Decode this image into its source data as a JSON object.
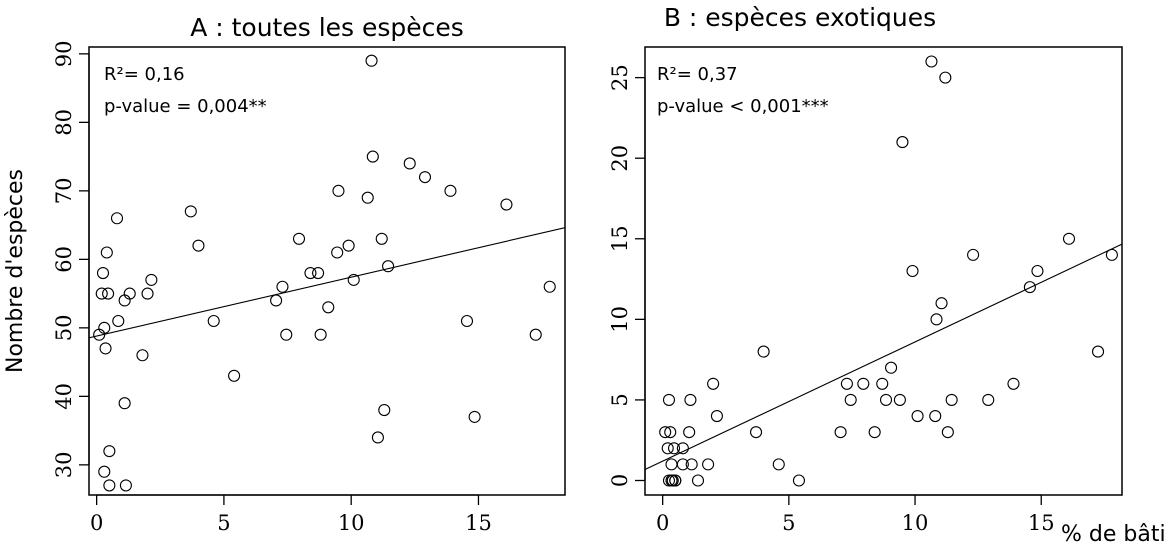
{
  "chart_data": [
    {
      "type": "scatter",
      "title": "A : toutes les espèces",
      "ylabel": "Nombre d'espèces",
      "xlabel": "",
      "xlim": [
        -0.3,
        18.4
      ],
      "ylim": [
        25.6,
        91
      ],
      "xticks": [
        0,
        5,
        10,
        15
      ],
      "yticks": [
        30,
        40,
        50,
        60,
        70,
        80,
        90
      ],
      "annotation_r2": "R²= 0,16",
      "annotation_p": "p-value = 0,004**",
      "regression": {
        "intercept": 48.8,
        "slope": 0.86
      },
      "points": [
        [
          0.1,
          49
        ],
        [
          0.2,
          55
        ],
        [
          0.25,
          58
        ],
        [
          0.3,
          29
        ],
        [
          0.3,
          50
        ],
        [
          0.35,
          47
        ],
        [
          0.4,
          61
        ],
        [
          0.45,
          55
        ],
        [
          0.5,
          32
        ],
        [
          0.5,
          27
        ],
        [
          0.8,
          66
        ],
        [
          0.85,
          51
        ],
        [
          1.1,
          54
        ],
        [
          1.1,
          39
        ],
        [
          1.15,
          27
        ],
        [
          1.3,
          55
        ],
        [
          1.8,
          46
        ],
        [
          2.0,
          55
        ],
        [
          2.15,
          57
        ],
        [
          3.7,
          67
        ],
        [
          4.0,
          62
        ],
        [
          4.6,
          51
        ],
        [
          5.4,
          43
        ],
        [
          7.05,
          54
        ],
        [
          7.3,
          56
        ],
        [
          7.45,
          49
        ],
        [
          7.95,
          63
        ],
        [
          8.4,
          58
        ],
        [
          8.7,
          58
        ],
        [
          8.8,
          49
        ],
        [
          9.1,
          53
        ],
        [
          9.45,
          61
        ],
        [
          9.5,
          70
        ],
        [
          9.9,
          62
        ],
        [
          10.1,
          57
        ],
        [
          10.65,
          69
        ],
        [
          10.8,
          89
        ],
        [
          10.85,
          75
        ],
        [
          11.05,
          34
        ],
        [
          11.2,
          63
        ],
        [
          11.3,
          38
        ],
        [
          11.45,
          59
        ],
        [
          12.3,
          74
        ],
        [
          12.9,
          72
        ],
        [
          13.9,
          70
        ],
        [
          14.55,
          51
        ],
        [
          14.85,
          37
        ],
        [
          16.1,
          68
        ],
        [
          17.25,
          49
        ],
        [
          17.8,
          56
        ]
      ]
    },
    {
      "type": "scatter",
      "title": "B : espèces exotiques",
      "ylabel": "",
      "xlabel": "% de bâti",
      "xlim": [
        -0.7,
        18.2
      ],
      "ylim": [
        -0.9,
        26.9
      ],
      "xticks": [
        0,
        5,
        10,
        15
      ],
      "yticks": [
        0,
        5,
        10,
        15,
        20,
        25
      ],
      "annotation_r2": "R²= 0,37",
      "annotation_p": "p-value < 0,001***",
      "regression": {
        "intercept": 1.2,
        "slope": 0.74
      },
      "points": [
        [
          0.1,
          3
        ],
        [
          0.2,
          2
        ],
        [
          0.25,
          5
        ],
        [
          0.25,
          0
        ],
        [
          0.3,
          3
        ],
        [
          0.35,
          0
        ],
        [
          0.35,
          1
        ],
        [
          0.4,
          0
        ],
        [
          0.45,
          2
        ],
        [
          0.5,
          0
        ],
        [
          0.5,
          0
        ],
        [
          0.8,
          2
        ],
        [
          0.8,
          1
        ],
        [
          1.05,
          3
        ],
        [
          1.1,
          5
        ],
        [
          1.15,
          1
        ],
        [
          1.4,
          0
        ],
        [
          1.8,
          1
        ],
        [
          2.0,
          6
        ],
        [
          2.15,
          4
        ],
        [
          3.7,
          3
        ],
        [
          4.0,
          8
        ],
        [
          4.6,
          1
        ],
        [
          5.4,
          0
        ],
        [
          7.05,
          3
        ],
        [
          7.3,
          6
        ],
        [
          7.45,
          5
        ],
        [
          7.95,
          6
        ],
        [
          8.4,
          3
        ],
        [
          8.7,
          6
        ],
        [
          8.85,
          5
        ],
        [
          9.05,
          7
        ],
        [
          9.4,
          5
        ],
        [
          9.5,
          21
        ],
        [
          9.9,
          13
        ],
        [
          10.1,
          4
        ],
        [
          10.65,
          26
        ],
        [
          10.8,
          4
        ],
        [
          10.85,
          10
        ],
        [
          11.05,
          11
        ],
        [
          11.2,
          25
        ],
        [
          11.3,
          3
        ],
        [
          11.45,
          5
        ],
        [
          12.3,
          14
        ],
        [
          12.9,
          5
        ],
        [
          13.9,
          6
        ],
        [
          14.55,
          12
        ],
        [
          14.85,
          13
        ],
        [
          16.1,
          15
        ],
        [
          17.25,
          8
        ],
        [
          17.8,
          14
        ]
      ]
    }
  ]
}
